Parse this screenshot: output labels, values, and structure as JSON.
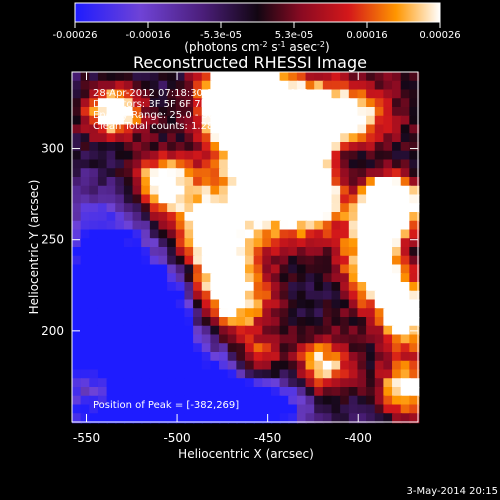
{
  "chart_data": {
    "type": "heatmap",
    "title": "Reconstructed RHESSI Image",
    "xlabel": "Heliocentric X (arcsec)",
    "ylabel": "Heliocentric Y (arcsec)",
    "xlim": [
      -558,
      -367
    ],
    "ylim": [
      150,
      342
    ],
    "x_ticks": [
      -550,
      -500,
      -450,
      -400
    ],
    "y_ticks": [
      200,
      250,
      300
    ],
    "colorbar": {
      "min": -0.00026,
      "max": 0.00026,
      "ticks": [
        "-0.00026",
        "-0.00016",
        "-5.3e-05",
        "5.3e-05",
        "0.00016",
        "0.00026"
      ],
      "label_main": "(photons cm",
      "label_sup1": "-2",
      "label_mid": " s",
      "label_sup2": "-1",
      "label_tail": " asec",
      "label_sup3": "-2",
      "label_close": ")"
    },
    "annotations": [
      "28-Apr-2012 07:18:30.000 to 07:24:30.000",
      "Detectors: 3F 5F 6F 7F 8F 9F, Att 0",
      "Energy Range: 25.0 - 50.0 keV",
      "Clean    Total counts: 1.28e+04"
    ],
    "peak_label": "Position of Peak = [-382,269]",
    "peak_position": [
      -382,
      269
    ],
    "heatmap_notes": [
      "Bright emission clusters around the upper center and upper right, with a peak near [-382, 269].",
      "Lower-left region is dominated by purple and blue low-intensity values."
    ]
  },
  "footer": {
    "date": "3-May-2014 20:15"
  }
}
